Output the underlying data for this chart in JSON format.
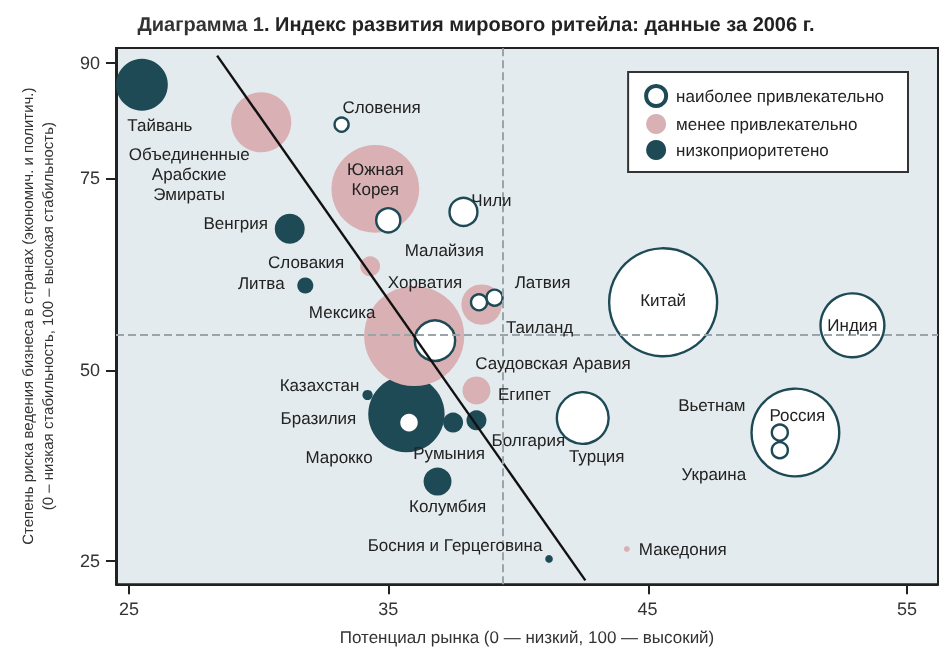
{
  "chart_data": {
    "type": "bubble",
    "title": "Диаграмма 1. Индекс развития мирового ритейла: данные за 2006 г.",
    "xlabel": "Потенциал рынка (0 — низкий, 100 — высокий)",
    "ylabel": "Степень риска ведения бизнеса в странах (экономич. и политич.)\n(0 – низкая стабильность, 100 – высокая стабильность)",
    "xlim": [
      24.5,
      56.2
    ],
    "xticks": [
      25,
      35,
      45,
      55
    ],
    "ylim": [
      22,
      92
    ],
    "yticks": [
      25,
      50,
      75,
      90
    ],
    "grid": false,
    "legend": "top right",
    "series": [
      {
        "name": "наиболее привлекательно",
        "color": "#ffffff",
        "x": [
          33.2,
          35,
          37.9,
          38.5,
          39.1,
          36.8,
          35.8,
          42.5,
          45.6,
          52.9,
          50.7,
          50.1,
          50.1
        ],
        "values": [
          82,
          69.5,
          70.6,
          58.8,
          59.4,
          53.8,
          43.1,
          43.7,
          58.8,
          55.8,
          41.8,
          41.8,
          39.5
        ],
        "sizes": [
          0.017,
          0.05,
          0.067,
          0.022,
          0.022,
          0.14,
          0.034,
          0.23,
          1,
          0.35,
          0.66,
          0.022,
          0.022
        ]
      },
      {
        "name": "менее привлекательно",
        "color": "#d9b1b4",
        "x": [
          30.1,
          34.5,
          34.3,
          38.6,
          36,
          38.4,
          44.2
        ],
        "values": [
          82.3,
          73.6,
          63.5,
          58.5,
          54.4,
          47.3,
          26.6
        ],
        "sizes": [
          0.31,
          0.66,
          0.034,
          0.14,
          0.86,
          0.067,
          0.003
        ]
      },
      {
        "name": "низкоприоритетено",
        "color": "#1d4a55",
        "x": [
          25.5,
          31.2,
          31.8,
          34.2,
          35.7,
          37.5,
          38.4,
          36.9,
          41.2
        ],
        "values": [
          87.2,
          68.4,
          61,
          46.7,
          44.2,
          43.1,
          43.4,
          35.4,
          25.3
        ],
        "sizes": [
          0.23,
          0.077,
          0.022,
          0.009,
          0.5,
          0.034,
          0.034,
          0.067,
          0.005
        ]
      },
      {
        "type": "line",
        "color": "#111111",
        "x": [
          28.4,
          42.6
        ],
        "values": [
          91,
          22.5
        ]
      }
    ],
    "ref_lines": [
      {
        "axis": "x",
        "value": 39.4,
        "color": "#9aa5aa",
        "line_style": "dashed"
      },
      {
        "axis": "y",
        "value": 54.7,
        "color": "#9aa5aa",
        "line_style": "dashed"
      }
    ],
    "annotations": [
      {
        "text": "Тайвань",
        "x": 25.5,
        "y": 87.2
      },
      {
        "text": "Объединенные\nАрабские\nЭмираты",
        "x": 30.1,
        "y": 82.3
      },
      {
        "text": "Словения",
        "x": 33.2,
        "y": 82
      },
      {
        "text": "Южная\nКорея",
        "x": 34.5,
        "y": 73.6
      },
      {
        "text": "Малайзия",
        "x": 35,
        "y": 69.5
      },
      {
        "text": "Чили",
        "x": 37.9,
        "y": 70.6
      },
      {
        "text": "Венгрия",
        "x": 31.2,
        "y": 68.4
      },
      {
        "text": "Словакия",
        "x": 34.3,
        "y": 63.5
      },
      {
        "text": "Литва",
        "x": 31.8,
        "y": 61
      },
      {
        "text": "Таиланд",
        "x": 38.6,
        "y": 58.5
      },
      {
        "text": "Хорватия",
        "x": 38.5,
        "y": 58.8
      },
      {
        "text": "Латвия",
        "x": 39.1,
        "y": 59.4
      },
      {
        "text": "Мексика",
        "x": 36,
        "y": 54.4
      },
      {
        "text": "Саудовская Аравия",
        "x": 36.8,
        "y": 53.8
      },
      {
        "text": "Египет",
        "x": 38.4,
        "y": 47.3
      },
      {
        "text": "Казахстан",
        "x": 34.2,
        "y": 46.7
      },
      {
        "text": "Бразилия",
        "x": 35.7,
        "y": 44.2
      },
      {
        "text": "Марокко",
        "x": 35.8,
        "y": 43.1
      },
      {
        "text": "Румыния",
        "x": 37.5,
        "y": 43.1
      },
      {
        "text": "Болгария",
        "x": 38.4,
        "y": 43.4
      },
      {
        "text": "Колумбия",
        "x": 36.9,
        "y": 35.4
      },
      {
        "text": "Босния и Герцеговина",
        "x": 41.2,
        "y": 25.3
      },
      {
        "text": "Македония",
        "x": 44.2,
        "y": 26.6
      },
      {
        "text": "Турция",
        "x": 42.5,
        "y": 43.7
      },
      {
        "text": "Китай",
        "x": 45.6,
        "y": 58.8
      },
      {
        "text": "Индия",
        "x": 52.9,
        "y": 55.8
      },
      {
        "text": "Россия",
        "x": 50.7,
        "y": 41.8
      },
      {
        "text": "Вьетнам",
        "x": 50.1,
        "y": 41.8
      },
      {
        "text": "Украина",
        "x": 50.1,
        "y": 39.5
      }
    ]
  }
}
